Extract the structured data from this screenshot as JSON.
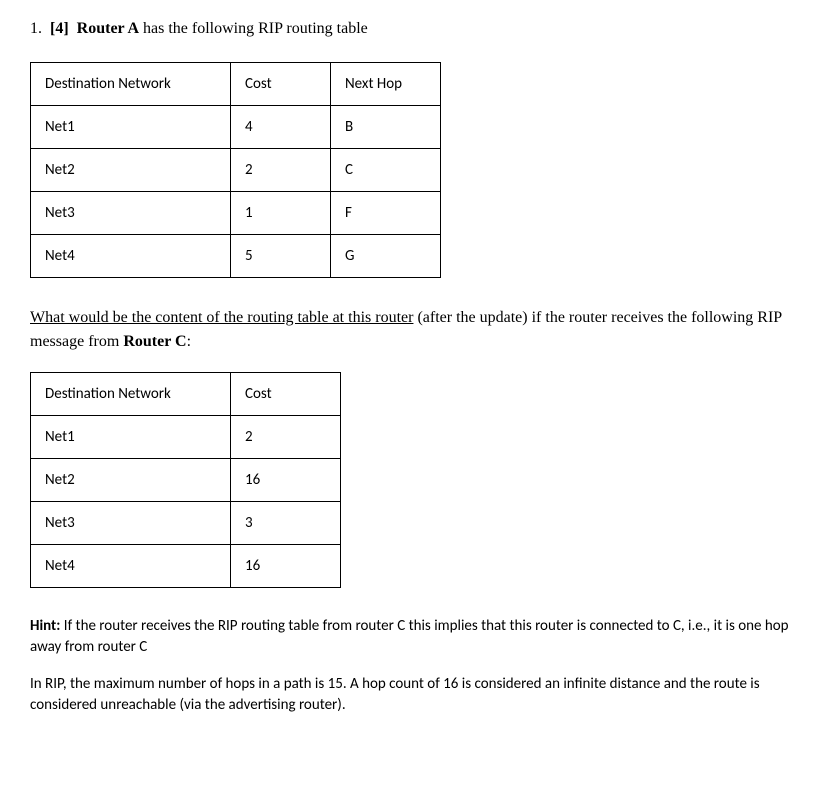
{
  "question": {
    "number": "1.",
    "points": "[4]",
    "router_label": "Router A",
    "intro_text": " has the following RIP routing table"
  },
  "table1": {
    "headers": [
      "Destination Network",
      "Cost",
      "Next Hop"
    ],
    "rows": [
      [
        "Net1",
        "4",
        "B"
      ],
      [
        "Net2",
        "2",
        "C"
      ],
      [
        "Net3",
        "1",
        "F"
      ],
      [
        "Net4",
        "5",
        "G"
      ]
    ]
  },
  "middle": {
    "underlined": "What would be the content of the routing table at this router",
    "rest1": " (after the update) if the router receives the following RIP message from ",
    "router_c": "Router C",
    "colon": ":"
  },
  "table2": {
    "headers": [
      "Destination Network",
      "Cost"
    ],
    "rows": [
      [
        "Net1",
        "2"
      ],
      [
        "Net2",
        "16"
      ],
      [
        "Net3",
        "3"
      ],
      [
        "Net4",
        "16"
      ]
    ]
  },
  "hint": {
    "label": "Hint:",
    "text": " If the router receives the RIP routing table from router C this implies that this router is connected to C, i.e., it is one hop away from router C"
  },
  "note": "In RIP, the maximum number of hops in a path is 15. A hop count of 16 is considered an infinite distance and the route is considered unreachable (via the advertising router)."
}
